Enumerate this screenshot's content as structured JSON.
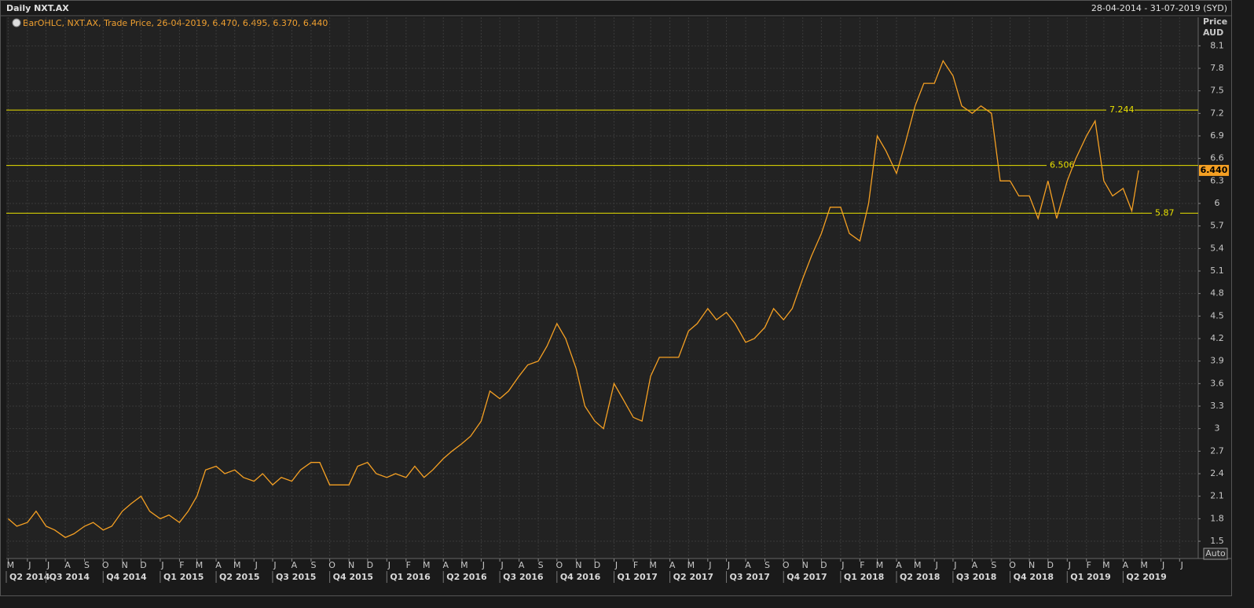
{
  "chart_data": {
    "type": "line",
    "title": "Daily NXT.AX",
    "date_range": "28-04-2014 - 31-07-2019 (SYD)",
    "legend_text": "BarOHLC, NXT.AX, Trade Price, 26-04-2019, 6.470, 6.495, 6.370, 6.440",
    "y_axis_label": [
      "Price",
      "AUD"
    ],
    "scale_button": "Auto",
    "grid": true,
    "series": [
      {
        "name": "NXT.AX",
        "color": "#f5a023",
        "x": [
          "2014-05-01",
          "2014-05-15",
          "2014-06-01",
          "2014-06-15",
          "2014-07-01",
          "2014-07-15",
          "2014-08-01",
          "2014-08-15",
          "2014-09-01",
          "2014-09-15",
          "2014-10-01",
          "2014-10-15",
          "2014-11-01",
          "2014-11-15",
          "2014-12-01",
          "2014-12-15",
          "2015-01-01",
          "2015-01-15",
          "2015-02-01",
          "2015-02-15",
          "2015-03-01",
          "2015-03-15",
          "2015-04-01",
          "2015-04-15",
          "2015-05-01",
          "2015-05-15",
          "2015-06-01",
          "2015-06-15",
          "2015-07-01",
          "2015-07-15",
          "2015-08-01",
          "2015-08-15",
          "2015-09-01",
          "2015-09-15",
          "2015-10-01",
          "2015-10-15",
          "2015-11-01",
          "2015-11-15",
          "2015-12-01",
          "2015-12-15",
          "2016-01-01",
          "2016-01-15",
          "2016-02-01",
          "2016-02-15",
          "2016-03-01",
          "2016-03-15",
          "2016-04-01",
          "2016-04-15",
          "2016-05-01",
          "2016-05-15",
          "2016-06-01",
          "2016-06-15",
          "2016-07-01",
          "2016-07-15",
          "2016-08-01",
          "2016-08-15",
          "2016-09-01",
          "2016-09-15",
          "2016-10-01",
          "2016-10-15",
          "2016-11-01",
          "2016-11-15",
          "2016-12-01",
          "2016-12-15",
          "2017-01-01",
          "2017-01-15",
          "2017-02-01",
          "2017-02-15",
          "2017-03-01",
          "2017-03-15",
          "2017-04-01",
          "2017-04-15",
          "2017-05-01",
          "2017-05-15",
          "2017-06-01",
          "2017-06-15",
          "2017-07-01",
          "2017-07-15",
          "2017-08-01",
          "2017-08-15",
          "2017-09-01",
          "2017-09-15",
          "2017-10-01",
          "2017-10-15",
          "2017-11-01",
          "2017-11-15",
          "2017-12-01",
          "2017-12-15",
          "2018-01-01",
          "2018-01-15",
          "2018-02-01",
          "2018-02-15",
          "2018-03-01",
          "2018-03-15",
          "2018-04-01",
          "2018-04-15",
          "2018-05-01",
          "2018-05-15",
          "2018-06-01",
          "2018-06-15",
          "2018-07-01",
          "2018-07-15",
          "2018-08-01",
          "2018-08-15",
          "2018-09-01",
          "2018-09-15",
          "2018-10-01",
          "2018-10-15",
          "2018-11-01",
          "2018-11-15",
          "2018-12-01",
          "2018-12-15",
          "2019-01-01",
          "2019-01-15",
          "2019-02-01",
          "2019-02-15",
          "2019-03-01",
          "2019-03-15",
          "2019-04-01",
          "2019-04-15",
          "2019-04-26"
        ],
        "values": [
          1.8,
          1.7,
          1.75,
          1.9,
          1.7,
          1.65,
          1.55,
          1.6,
          1.7,
          1.75,
          1.65,
          1.7,
          1.9,
          2.0,
          2.1,
          1.9,
          1.8,
          1.85,
          1.75,
          1.9,
          2.1,
          2.45,
          2.5,
          2.4,
          2.45,
          2.35,
          2.3,
          2.4,
          2.25,
          2.35,
          2.3,
          2.45,
          2.55,
          2.55,
          2.25,
          2.25,
          2.25,
          2.5,
          2.55,
          2.4,
          2.35,
          2.4,
          2.35,
          2.5,
          2.35,
          2.45,
          2.6,
          2.7,
          2.8,
          2.9,
          3.1,
          3.5,
          3.4,
          3.5,
          3.7,
          3.85,
          3.9,
          4.1,
          4.4,
          4.2,
          3.8,
          3.3,
          3.1,
          3.0,
          3.6,
          3.4,
          3.15,
          3.1,
          3.7,
          3.95,
          3.95,
          3.95,
          4.3,
          4.4,
          4.6,
          4.45,
          4.55,
          4.4,
          4.15,
          4.2,
          4.35,
          4.6,
          4.45,
          4.6,
          5.0,
          5.3,
          5.6,
          5.95,
          5.95,
          5.6,
          5.5,
          6.0,
          6.9,
          6.7,
          6.4,
          6.8,
          7.3,
          7.6,
          7.6,
          7.9,
          7.7,
          7.3,
          7.2,
          7.3,
          7.2,
          6.3,
          6.3,
          6.1,
          6.1,
          5.8,
          6.3,
          5.8,
          6.3,
          6.6,
          6.9,
          7.1,
          6.3,
          6.1,
          6.2,
          5.9,
          6.44
        ]
      }
    ],
    "levels": [
      7.244,
      6.506,
      5.87
    ],
    "level_color": "#e8e000",
    "last_price": {
      "value": 6.44,
      "label": "6.440"
    },
    "xlim": [
      "2014-04-28",
      "2019-07-31"
    ],
    "ylim": [
      1.27,
      8.48
    ],
    "yticks": [
      1.5,
      1.8,
      2.1,
      2.4,
      2.7,
      3,
      3.3,
      3.6,
      3.9,
      4.2,
      4.5,
      4.8,
      5.1,
      5.4,
      5.7,
      6,
      6.3,
      6.6,
      6.9,
      7.2,
      7.5,
      7.8,
      8.1
    ],
    "xticks": [
      {
        "value": "2014-05-01",
        "label": "M"
      },
      {
        "value": "2014-06-01",
        "label": "J"
      },
      {
        "value": "2014-07-01",
        "label": "J"
      },
      {
        "value": "2014-08-01",
        "label": "A"
      },
      {
        "value": "2014-09-01",
        "label": "S"
      },
      {
        "value": "2014-10-01",
        "label": "O"
      },
      {
        "value": "2014-11-01",
        "label": "N"
      },
      {
        "value": "2014-12-01",
        "label": "D"
      },
      {
        "value": "2015-01-01",
        "label": "J"
      },
      {
        "value": "2015-02-01",
        "label": "F"
      },
      {
        "value": "2015-03-01",
        "label": "M"
      },
      {
        "value": "2015-04-01",
        "label": "A"
      },
      {
        "value": "2015-05-01",
        "label": "M"
      },
      {
        "value": "2015-06-01",
        "label": "J"
      },
      {
        "value": "2015-07-01",
        "label": "J"
      },
      {
        "value": "2015-08-01",
        "label": "A"
      },
      {
        "value": "2015-09-01",
        "label": "S"
      },
      {
        "value": "2015-10-01",
        "label": "O"
      },
      {
        "value": "2015-11-01",
        "label": "N"
      },
      {
        "value": "2015-12-01",
        "label": "D"
      },
      {
        "value": "2016-01-01",
        "label": "J"
      },
      {
        "value": "2016-02-01",
        "label": "F"
      },
      {
        "value": "2016-03-01",
        "label": "M"
      },
      {
        "value": "2016-04-01",
        "label": "A"
      },
      {
        "value": "2016-05-01",
        "label": "M"
      },
      {
        "value": "2016-06-01",
        "label": "J"
      },
      {
        "value": "2016-07-01",
        "label": "J"
      },
      {
        "value": "2016-08-01",
        "label": "A"
      },
      {
        "value": "2016-09-01",
        "label": "S"
      },
      {
        "value": "2016-10-01",
        "label": "O"
      },
      {
        "value": "2016-11-01",
        "label": "N"
      },
      {
        "value": "2016-12-01",
        "label": "D"
      },
      {
        "value": "2017-01-01",
        "label": "J"
      },
      {
        "value": "2017-02-01",
        "label": "F"
      },
      {
        "value": "2017-03-01",
        "label": "M"
      },
      {
        "value": "2017-04-01",
        "label": "A"
      },
      {
        "value": "2017-05-01",
        "label": "M"
      },
      {
        "value": "2017-06-01",
        "label": "J"
      },
      {
        "value": "2017-07-01",
        "label": "J"
      },
      {
        "value": "2017-08-01",
        "label": "A"
      },
      {
        "value": "2017-09-01",
        "label": "S"
      },
      {
        "value": "2017-10-01",
        "label": "O"
      },
      {
        "value": "2017-11-01",
        "label": "N"
      },
      {
        "value": "2017-12-01",
        "label": "D"
      },
      {
        "value": "2018-01-01",
        "label": "J"
      },
      {
        "value": "2018-02-01",
        "label": "F"
      },
      {
        "value": "2018-03-01",
        "label": "M"
      },
      {
        "value": "2018-04-01",
        "label": "A"
      },
      {
        "value": "2018-05-01",
        "label": "M"
      },
      {
        "value": "2018-06-01",
        "label": "J"
      },
      {
        "value": "2018-07-01",
        "label": "J"
      },
      {
        "value": "2018-08-01",
        "label": "A"
      },
      {
        "value": "2018-09-01",
        "label": "S"
      },
      {
        "value": "2018-10-01",
        "label": "O"
      },
      {
        "value": "2018-11-01",
        "label": "N"
      },
      {
        "value": "2018-12-01",
        "label": "D"
      },
      {
        "value": "2019-01-01",
        "label": "J"
      },
      {
        "value": "2019-02-01",
        "label": "F"
      },
      {
        "value": "2019-03-01",
        "label": "M"
      },
      {
        "value": "2019-04-01",
        "label": "A"
      },
      {
        "value": "2019-05-01",
        "label": "M"
      },
      {
        "value": "2019-06-01",
        "label": "J"
      },
      {
        "value": "2019-07-01",
        "label": "J"
      }
    ],
    "quarters": [
      {
        "value": "2014-04-01",
        "label": "Q2 2014"
      },
      {
        "value": "2014-07-01",
        "label": "Q3 2014"
      },
      {
        "value": "2014-10-01",
        "label": "Q4 2014"
      },
      {
        "value": "2015-01-01",
        "label": "Q1 2015"
      },
      {
        "value": "2015-04-01",
        "label": "Q2 2015"
      },
      {
        "value": "2015-07-01",
        "label": "Q3 2015"
      },
      {
        "value": "2015-10-01",
        "label": "Q4 2015"
      },
      {
        "value": "2016-01-01",
        "label": "Q1 2016"
      },
      {
        "value": "2016-04-01",
        "label": "Q2 2016"
      },
      {
        "value": "2016-07-01",
        "label": "Q3 2016"
      },
      {
        "value": "2016-10-01",
        "label": "Q4 2016"
      },
      {
        "value": "2017-01-01",
        "label": "Q1 2017"
      },
      {
        "value": "2017-04-01",
        "label": "Q2 2017"
      },
      {
        "value": "2017-07-01",
        "label": "Q3 2017"
      },
      {
        "value": "2017-10-01",
        "label": "Q4 2017"
      },
      {
        "value": "2018-01-01",
        "label": "Q1 2018"
      },
      {
        "value": "2018-04-01",
        "label": "Q2 2018"
      },
      {
        "value": "2018-07-01",
        "label": "Q3 2018"
      },
      {
        "value": "2018-10-01",
        "label": "Q4 2018"
      },
      {
        "value": "2019-01-01",
        "label": "Q1 2019"
      },
      {
        "value": "2019-04-01",
        "label": "Q2 2019"
      }
    ]
  }
}
